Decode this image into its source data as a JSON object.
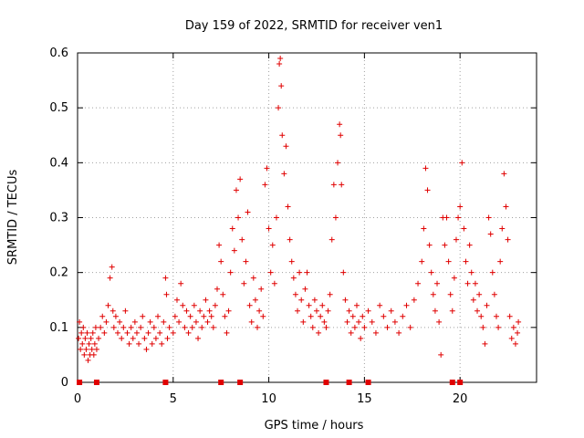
{
  "chart_data": {
    "type": "scatter",
    "title": "Day 159 of 2022, SRMTID for receiver ven1",
    "xlabel": "GPS time / hours",
    "ylabel": "SRMTID / TECUs",
    "xlim": [
      0,
      24
    ],
    "ylim": [
      0,
      0.6
    ],
    "xticks": [
      0,
      5,
      10,
      15,
      20
    ],
    "yticks": [
      0,
      0.1,
      0.2,
      0.3,
      0.4,
      0.5,
      0.6
    ],
    "xtick_labels": [
      "0",
      "5",
      "10",
      "15",
      "20"
    ],
    "ytick_labels": [
      "0",
      "0.1",
      "0.2",
      "0.3",
      "0.4",
      "0.5",
      "0.6"
    ],
    "grid": true,
    "marker": "plus",
    "color": "#e00000",
    "series": [
      {
        "name": "SRMTID",
        "points": [
          [
            0.05,
            0.08
          ],
          [
            0.1,
            0.11
          ],
          [
            0.15,
            0.06
          ],
          [
            0.2,
            0.09
          ],
          [
            0.25,
            0.07
          ],
          [
            0.3,
            0.1
          ],
          [
            0.35,
            0.05
          ],
          [
            0.4,
            0.08
          ],
          [
            0.45,
            0.06
          ],
          [
            0.5,
            0.09
          ],
          [
            0.55,
            0.04
          ],
          [
            0.6,
            0.07
          ],
          [
            0.65,
            0.05
          ],
          [
            0.7,
            0.08
          ],
          [
            0.75,
            0.06
          ],
          [
            0.8,
            0.09
          ],
          [
            0.85,
            0.05
          ],
          [
            0.9,
            0.07
          ],
          [
            0.95,
            0.1
          ],
          [
            1.0,
            0.06
          ],
          [
            1.1,
            0.08
          ],
          [
            1.2,
            0.1
          ],
          [
            1.3,
            0.12
          ],
          [
            1.4,
            0.09
          ],
          [
            1.5,
            0.11
          ],
          [
            1.6,
            0.14
          ],
          [
            1.7,
            0.19
          ],
          [
            1.8,
            0.21
          ],
          [
            1.85,
            0.13
          ],
          [
            1.9,
            0.1
          ],
          [
            2.0,
            0.12
          ],
          [
            2.1,
            0.09
          ],
          [
            2.2,
            0.11
          ],
          [
            2.3,
            0.08
          ],
          [
            2.4,
            0.1
          ],
          [
            2.5,
            0.13
          ],
          [
            2.6,
            0.09
          ],
          [
            2.7,
            0.07
          ],
          [
            2.8,
            0.1
          ],
          [
            2.9,
            0.08
          ],
          [
            3.0,
            0.11
          ],
          [
            3.1,
            0.09
          ],
          [
            3.2,
            0.07
          ],
          [
            3.3,
            0.1
          ],
          [
            3.4,
            0.12
          ],
          [
            3.5,
            0.08
          ],
          [
            3.6,
            0.06
          ],
          [
            3.7,
            0.09
          ],
          [
            3.8,
            0.11
          ],
          [
            3.9,
            0.07
          ],
          [
            4.0,
            0.1
          ],
          [
            4.1,
            0.08
          ],
          [
            4.2,
            0.12
          ],
          [
            4.3,
            0.09
          ],
          [
            4.4,
            0.07
          ],
          [
            4.5,
            0.11
          ],
          [
            4.6,
            0.19
          ],
          [
            4.65,
            0.16
          ],
          [
            4.7,
            0.08
          ],
          [
            4.8,
            0.1
          ],
          [
            5.0,
            0.09
          ],
          [
            5.1,
            0.12
          ],
          [
            5.2,
            0.15
          ],
          [
            5.3,
            0.11
          ],
          [
            5.4,
            0.18
          ],
          [
            5.5,
            0.14
          ],
          [
            5.6,
            0.1
          ],
          [
            5.7,
            0.13
          ],
          [
            5.8,
            0.09
          ],
          [
            5.9,
            0.12
          ],
          [
            6.0,
            0.1
          ],
          [
            6.1,
            0.14
          ],
          [
            6.2,
            0.11
          ],
          [
            6.3,
            0.08
          ],
          [
            6.4,
            0.13
          ],
          [
            6.5,
            0.1
          ],
          [
            6.6,
            0.12
          ],
          [
            6.7,
            0.15
          ],
          [
            6.8,
            0.11
          ],
          [
            6.9,
            0.13
          ],
          [
            7.0,
            0.12
          ],
          [
            7.1,
            0.1
          ],
          [
            7.2,
            0.14
          ],
          [
            7.3,
            0.17
          ],
          [
            7.4,
            0.25
          ],
          [
            7.5,
            0.22
          ],
          [
            7.6,
            0.16
          ],
          [
            7.7,
            0.12
          ],
          [
            7.8,
            0.09
          ],
          [
            7.9,
            0.13
          ],
          [
            8.0,
            0.2
          ],
          [
            8.1,
            0.28
          ],
          [
            8.2,
            0.24
          ],
          [
            8.3,
            0.35
          ],
          [
            8.4,
            0.3
          ],
          [
            8.5,
            0.37
          ],
          [
            8.6,
            0.26
          ],
          [
            8.7,
            0.18
          ],
          [
            8.8,
            0.22
          ],
          [
            8.9,
            0.31
          ],
          [
            9.0,
            0.14
          ],
          [
            9.1,
            0.11
          ],
          [
            9.2,
            0.19
          ],
          [
            9.3,
            0.15
          ],
          [
            9.4,
            0.1
          ],
          [
            9.5,
            0.13
          ],
          [
            9.6,
            0.17
          ],
          [
            9.7,
            0.12
          ],
          [
            9.8,
            0.36
          ],
          [
            9.9,
            0.39
          ],
          [
            10.0,
            0.28
          ],
          [
            10.1,
            0.2
          ],
          [
            10.2,
            0.25
          ],
          [
            10.3,
            0.18
          ],
          [
            10.4,
            0.3
          ],
          [
            10.5,
            0.5
          ],
          [
            10.55,
            0.58
          ],
          [
            10.6,
            0.59
          ],
          [
            10.65,
            0.54
          ],
          [
            10.7,
            0.45
          ],
          [
            10.8,
            0.38
          ],
          [
            10.9,
            0.43
          ],
          [
            11.0,
            0.32
          ],
          [
            11.1,
            0.26
          ],
          [
            11.2,
            0.22
          ],
          [
            11.3,
            0.19
          ],
          [
            11.4,
            0.16
          ],
          [
            11.5,
            0.13
          ],
          [
            11.6,
            0.2
          ],
          [
            11.7,
            0.15
          ],
          [
            11.8,
            0.11
          ],
          [
            11.9,
            0.17
          ],
          [
            12.0,
            0.2
          ],
          [
            12.1,
            0.14
          ],
          [
            12.2,
            0.12
          ],
          [
            12.3,
            0.1
          ],
          [
            12.4,
            0.15
          ],
          [
            12.5,
            0.13
          ],
          [
            12.6,
            0.09
          ],
          [
            12.7,
            0.12
          ],
          [
            12.8,
            0.14
          ],
          [
            12.9,
            0.11
          ],
          [
            13.0,
            0.1
          ],
          [
            13.1,
            0.13
          ],
          [
            13.2,
            0.16
          ],
          [
            13.3,
            0.26
          ],
          [
            13.4,
            0.36
          ],
          [
            13.5,
            0.3
          ],
          [
            13.6,
            0.4
          ],
          [
            13.7,
            0.47
          ],
          [
            13.75,
            0.45
          ],
          [
            13.8,
            0.36
          ],
          [
            13.9,
            0.2
          ],
          [
            14.0,
            0.15
          ],
          [
            14.1,
            0.11
          ],
          [
            14.2,
            0.13
          ],
          [
            14.3,
            0.09
          ],
          [
            14.4,
            0.12
          ],
          [
            14.5,
            0.1
          ],
          [
            14.6,
            0.14
          ],
          [
            14.7,
            0.11
          ],
          [
            14.8,
            0.08
          ],
          [
            14.9,
            0.12
          ],
          [
            15.0,
            0.1
          ],
          [
            15.2,
            0.13
          ],
          [
            15.4,
            0.11
          ],
          [
            15.6,
            0.09
          ],
          [
            15.8,
            0.14
          ],
          [
            16.0,
            0.12
          ],
          [
            16.2,
            0.1
          ],
          [
            16.4,
            0.13
          ],
          [
            16.6,
            0.11
          ],
          [
            16.8,
            0.09
          ],
          [
            17.0,
            0.12
          ],
          [
            17.2,
            0.14
          ],
          [
            17.4,
            0.1
          ],
          [
            17.6,
            0.15
          ],
          [
            17.8,
            0.18
          ],
          [
            18.0,
            0.22
          ],
          [
            18.1,
            0.28
          ],
          [
            18.2,
            0.39
          ],
          [
            18.3,
            0.35
          ],
          [
            18.4,
            0.25
          ],
          [
            18.5,
            0.2
          ],
          [
            18.6,
            0.16
          ],
          [
            18.7,
            0.13
          ],
          [
            18.8,
            0.18
          ],
          [
            18.9,
            0.11
          ],
          [
            19.0,
            0.05
          ],
          [
            19.1,
            0.3
          ],
          [
            19.2,
            0.25
          ],
          [
            19.3,
            0.3
          ],
          [
            19.4,
            0.22
          ],
          [
            19.5,
            0.16
          ],
          [
            19.6,
            0.13
          ],
          [
            19.7,
            0.19
          ],
          [
            19.8,
            0.26
          ],
          [
            19.9,
            0.3
          ],
          [
            20.0,
            0.32
          ],
          [
            20.1,
            0.4
          ],
          [
            20.2,
            0.28
          ],
          [
            20.3,
            0.22
          ],
          [
            20.4,
            0.18
          ],
          [
            20.5,
            0.25
          ],
          [
            20.6,
            0.2
          ],
          [
            20.7,
            0.15
          ],
          [
            20.8,
            0.18
          ],
          [
            20.9,
            0.13
          ],
          [
            21.0,
            0.16
          ],
          [
            21.1,
            0.12
          ],
          [
            21.2,
            0.1
          ],
          [
            21.3,
            0.07
          ],
          [
            21.4,
            0.14
          ],
          [
            21.5,
            0.3
          ],
          [
            21.6,
            0.27
          ],
          [
            21.7,
            0.2
          ],
          [
            21.8,
            0.16
          ],
          [
            21.9,
            0.12
          ],
          [
            22.0,
            0.1
          ],
          [
            22.1,
            0.22
          ],
          [
            22.2,
            0.28
          ],
          [
            22.3,
            0.38
          ],
          [
            22.4,
            0.32
          ],
          [
            22.5,
            0.26
          ],
          [
            22.6,
            0.12
          ],
          [
            22.7,
            0.08
          ],
          [
            22.8,
            0.1
          ],
          [
            22.9,
            0.07
          ],
          [
            23.0,
            0.09
          ],
          [
            23.05,
            0.11
          ]
        ]
      }
    ],
    "gap_markers": [
      0.1,
      1.0,
      4.6,
      7.5,
      8.5,
      13.0,
      14.2,
      15.2,
      19.6,
      20.0
    ]
  }
}
